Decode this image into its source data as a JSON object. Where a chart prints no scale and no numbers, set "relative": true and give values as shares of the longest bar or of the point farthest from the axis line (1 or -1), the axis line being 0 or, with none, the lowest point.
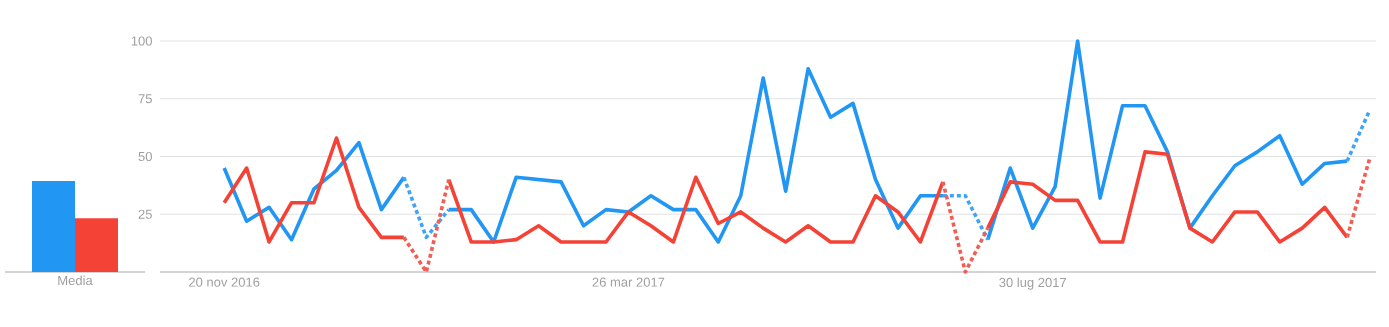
{
  "chart_data": [
    {
      "type": "bar",
      "categories": [
        "Media"
      ],
      "relative": true,
      "series": [
        {
          "color": "#2196f3",
          "values": [
            1
          ]
        },
        {
          "color": "#f44336",
          "values": [
            0.59
          ]
        }
      ]
    },
    {
      "type": "line",
      "grid": "y",
      "ylim": [
        0,
        100
      ],
      "yticks": [
        25,
        50,
        75,
        100
      ],
      "xlim": [
        "2016-10-31",
        "2017-11-14"
      ],
      "xticks": [
        {
          "value": "2016-11-20",
          "label": "20 nov 2016"
        },
        {
          "value": "2017-03-26",
          "label": "26 mar 2017"
        },
        {
          "value": "2017-07-30",
          "label": "30 lug 2017"
        }
      ],
      "x": [
        "2016-11-20",
        "2016-11-27",
        "2016-12-04",
        "2016-12-11",
        "2016-12-18",
        "2016-12-25",
        "2017-01-01",
        "2017-01-08",
        "2017-01-15",
        "2017-01-22",
        "2017-01-29",
        "2017-02-05",
        "2017-02-12",
        "2017-02-19",
        "2017-02-26",
        "2017-03-05",
        "2017-03-12",
        "2017-03-19",
        "2017-03-26",
        "2017-04-02",
        "2017-04-09",
        "2017-04-16",
        "2017-04-23",
        "2017-04-30",
        "2017-05-07",
        "2017-05-14",
        "2017-05-21",
        "2017-05-28",
        "2017-06-04",
        "2017-06-11",
        "2017-06-18",
        "2017-06-25",
        "2017-07-02",
        "2017-07-09",
        "2017-07-16",
        "2017-07-23",
        "2017-07-30",
        "2017-08-06",
        "2017-08-13",
        "2017-08-20",
        "2017-08-27",
        "2017-09-03",
        "2017-09-10",
        "2017-09-17",
        "2017-09-24",
        "2017-10-01",
        "2017-10-08",
        "2017-10-15",
        "2017-10-22",
        "2017-10-29",
        "2017-11-05",
        "2017-11-12"
      ],
      "series": [
        {
          "color": "#2196f3",
          "line_style": "solid",
          "values": [
            45,
            22,
            28,
            14,
            36,
            44,
            56,
            27,
            41,
            null,
            27,
            27,
            13,
            41,
            40,
            39,
            20,
            27,
            26,
            33,
            27,
            27,
            13,
            33,
            84,
            35,
            88,
            67,
            73,
            40,
            19,
            33,
            33,
            null,
            14,
            45,
            19,
            37,
            100,
            32,
            72,
            72,
            52,
            19,
            33,
            46,
            52,
            59,
            38,
            47,
            48,
            null
          ]
        },
        {
          "color": "#3fa4f5",
          "line_style": "dotted",
          "values": [
            null,
            null,
            null,
            null,
            null,
            null,
            null,
            null,
            41,
            15,
            27,
            null,
            null,
            null,
            null,
            null,
            null,
            null,
            null,
            null,
            null,
            null,
            null,
            null,
            null,
            null,
            null,
            null,
            null,
            null,
            null,
            null,
            33,
            33,
            14,
            null,
            null,
            null,
            null,
            null,
            null,
            null,
            null,
            null,
            null,
            null,
            null,
            null,
            null,
            null,
            48,
            70
          ]
        },
        {
          "color": "#f44336",
          "line_style": "solid",
          "values": [
            30,
            45,
            13,
            30,
            30,
            58,
            28,
            15,
            15,
            null,
            40,
            13,
            13,
            14,
            20,
            13,
            13,
            13,
            26,
            20,
            13,
            41,
            21,
            26,
            19,
            13,
            20,
            13,
            13,
            33,
            26,
            13,
            39,
            null,
            19,
            39,
            38,
            31,
            31,
            13,
            13,
            52,
            51,
            19,
            13,
            26,
            26,
            13,
            19,
            28,
            15,
            null
          ]
        },
        {
          "color": "#ef5f55",
          "line_style": "dotted",
          "values": [
            null,
            null,
            null,
            null,
            null,
            null,
            null,
            null,
            15,
            0,
            40,
            null,
            null,
            null,
            null,
            null,
            null,
            null,
            null,
            null,
            null,
            null,
            null,
            null,
            null,
            null,
            null,
            null,
            null,
            null,
            null,
            null,
            39,
            0,
            19,
            null,
            null,
            null,
            null,
            null,
            null,
            null,
            null,
            null,
            null,
            null,
            null,
            null,
            null,
            null,
            15,
            49
          ]
        }
      ]
    }
  ]
}
